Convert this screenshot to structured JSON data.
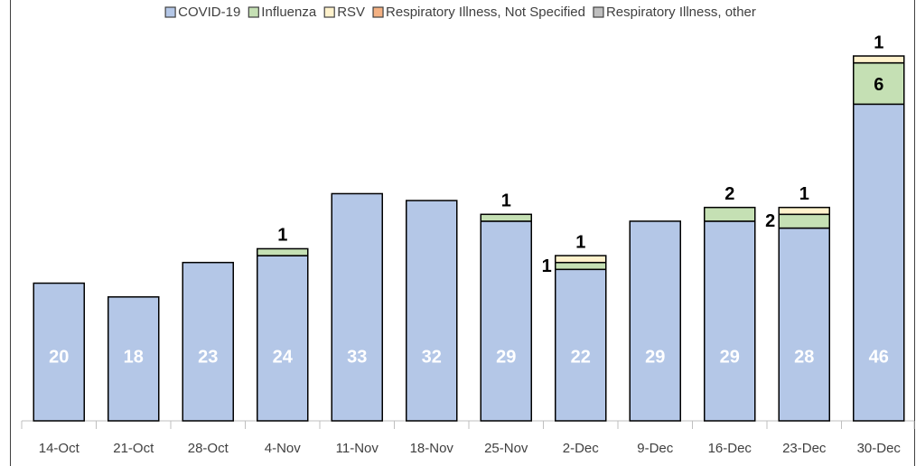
{
  "chart_data": {
    "type": "stacked_bar",
    "categories": [
      "14-Oct",
      "21-Oct",
      "28-Oct",
      "4-Nov",
      "11-Nov",
      "18-Nov",
      "25-Nov",
      "2-Dec",
      "9-Dec",
      "16-Dec",
      "23-Dec",
      "30-Dec"
    ],
    "series": [
      {
        "name": "COVID-19",
        "color": "#b4c7e7",
        "values": [
          20,
          18,
          23,
          24,
          33,
          32,
          29,
          22,
          29,
          29,
          28,
          46
        ]
      },
      {
        "name": "Influenza",
        "color": "#c5e0b4",
        "values": [
          0,
          0,
          0,
          1,
          0,
          0,
          1,
          1,
          0,
          2,
          2,
          6
        ]
      },
      {
        "name": "RSV",
        "color": "#fff2cc",
        "values": [
          0,
          0,
          0,
          0,
          0,
          0,
          0,
          1,
          0,
          0,
          1,
          1
        ]
      },
      {
        "name": "Respiratory Illness, Not Specified",
        "color": "#f4b183",
        "values": [
          0,
          0,
          0,
          0,
          0,
          0,
          0,
          0,
          0,
          0,
          0,
          0
        ]
      },
      {
        "name": "Respiratory Illness, other",
        "color": "#bfbfbf",
        "values": [
          0,
          0,
          0,
          0,
          0,
          0,
          0,
          0,
          0,
          0,
          0,
          0
        ]
      }
    ],
    "legend": "top"
  }
}
